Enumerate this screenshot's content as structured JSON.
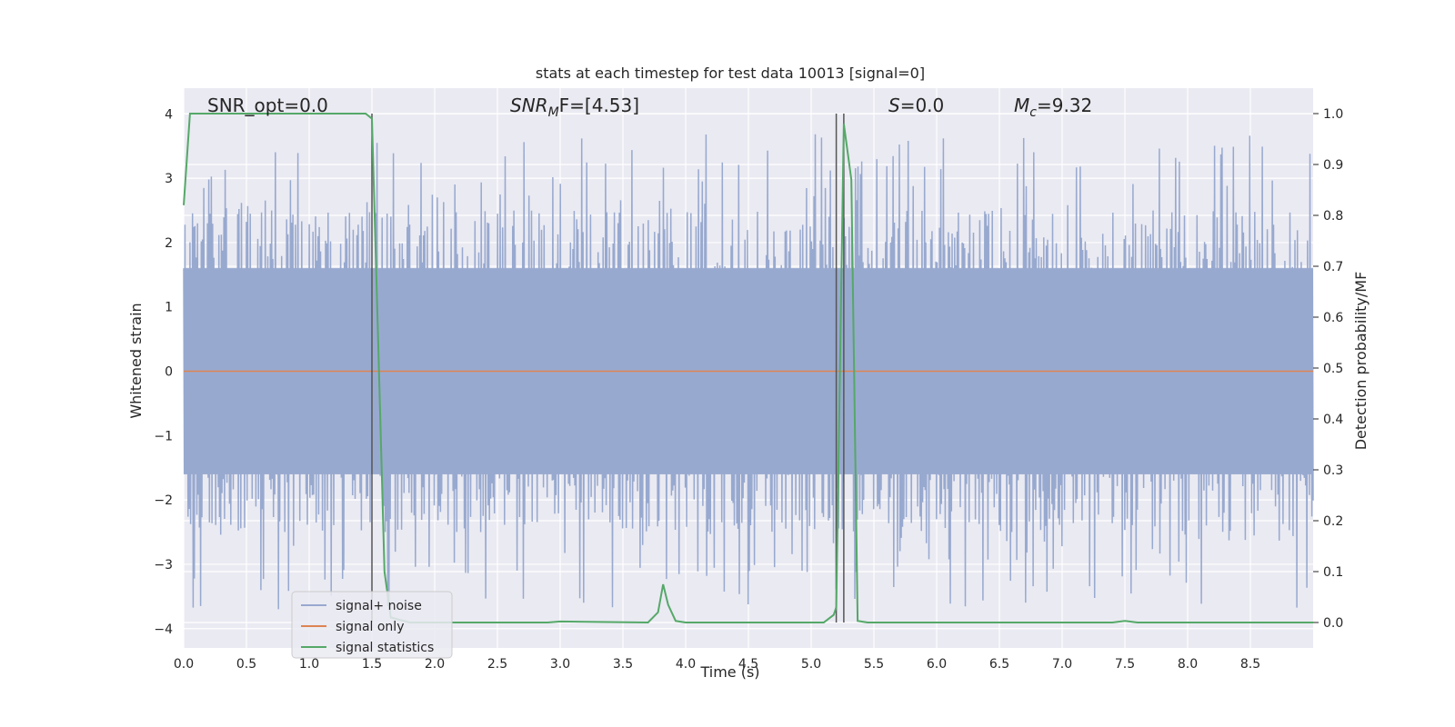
{
  "chart_data": {
    "type": "line",
    "title": "stats at each timestep for test data 10013 [signal=0]",
    "xlabel": "Time (s)",
    "ylabel_left": "Whitened strain",
    "ylabel_right": "Detection probability/MF",
    "xlim": [
      0.0,
      9.0
    ],
    "ylim_left": [
      -4.3,
      4.4
    ],
    "ylim_right": [
      -0.05,
      1.05
    ],
    "x_ticks": [
      "0.0",
      "0.5",
      "1.0",
      "1.5",
      "2.0",
      "2.5",
      "3.0",
      "3.5",
      "4.0",
      "4.5",
      "5.0",
      "5.5",
      "6.0",
      "6.5",
      "7.0",
      "7.5",
      "8.0",
      "8.5"
    ],
    "y_ticks_left": [
      "−4",
      "−3",
      "−2",
      "−1",
      "0",
      "1",
      "2",
      "3",
      "4"
    ],
    "y_ticks_right": [
      "0.0",
      "0.1",
      "0.2",
      "0.3",
      "0.4",
      "0.5",
      "0.6",
      "0.7",
      "0.8",
      "0.9",
      "1.0"
    ],
    "grid": true,
    "background": "#eaeaf2",
    "annotations": {
      "snr_opt": "SNR_opt=0.0",
      "snr_mf_base": "SNR",
      "snr_mf_sub": "M",
      "snr_mf_rest": "F=[4.53]",
      "s_base": "S",
      "s_rest": "=0.0",
      "mc_base": "M",
      "mc_sub": "c",
      "mc_rest": "=9.32"
    },
    "vlines_x": [
      1.5,
      5.2,
      5.26
    ],
    "series": [
      {
        "name": "signal+ noise",
        "axis": "left",
        "color": "#98a9cf",
        "kind": "noise",
        "x_range": [
          0.0,
          9.0
        ],
        "approx_range": [
          -3.8,
          3.9
        ],
        "typical_abs": 1.6,
        "samples": 1800
      },
      {
        "name": "signal only",
        "axis": "left",
        "color": "#dd8452",
        "x": [
          0.0,
          9.0
        ],
        "y": [
          0.0,
          0.0
        ]
      },
      {
        "name": "signal statistics",
        "axis": "right",
        "color": "#55a868",
        "x": [
          0.0,
          0.05,
          0.1,
          0.5,
          1.0,
          1.45,
          1.5,
          1.55,
          1.6,
          1.65,
          1.8,
          2.5,
          2.9,
          3.0,
          3.7,
          3.78,
          3.82,
          3.86,
          3.92,
          4.0,
          5.1,
          5.18,
          5.2,
          5.26,
          5.32,
          5.37,
          5.45,
          6.0,
          7.0,
          7.4,
          7.5,
          7.6,
          9.0
        ],
        "y": [
          0.82,
          1.0,
          1.0,
          1.0,
          1.0,
          1.0,
          0.99,
          0.55,
          0.1,
          0.01,
          0.0,
          0.0,
          0.0,
          0.002,
          0.0,
          0.02,
          0.075,
          0.035,
          0.003,
          0.0,
          0.0,
          0.015,
          0.03,
          0.98,
          0.87,
          0.003,
          0.0,
          0.0,
          0.0,
          0.0,
          0.003,
          0.0,
          0.0
        ]
      }
    ],
    "legend": {
      "placement": "lower-left",
      "entries": [
        "signal+ noise",
        "signal only",
        "signal statistics"
      ]
    }
  }
}
